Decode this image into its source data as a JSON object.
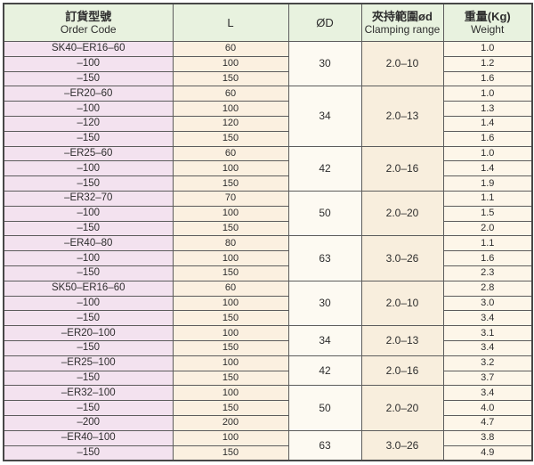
{
  "table": {
    "headers": {
      "order_code_zh": "訂貨型號",
      "order_code_en": "Order Code",
      "length": "L",
      "od": "ØD",
      "clamping_zh": "夾持範圍ød",
      "clamping_en": "Clamping range",
      "weight_zh": "重量(Kg)",
      "weight_en": "Weight"
    },
    "groups": [
      {
        "od": "30",
        "clamping": "2.0–10",
        "rows": [
          {
            "code": "SK40–ER16–60",
            "l": "60",
            "weight": "1.0"
          },
          {
            "code": "–100",
            "l": "100",
            "weight": "1.2"
          },
          {
            "code": "–150",
            "l": "150",
            "weight": "1.6"
          }
        ]
      },
      {
        "od": "34",
        "clamping": "2.0–13",
        "rows": [
          {
            "code": "–ER20–60",
            "l": "60",
            "weight": "1.0"
          },
          {
            "code": "–100",
            "l": "100",
            "weight": "1.3"
          },
          {
            "code": "–120",
            "l": "120",
            "weight": "1.4"
          },
          {
            "code": "–150",
            "l": "150",
            "weight": "1.6"
          }
        ]
      },
      {
        "od": "42",
        "clamping": "2.0–16",
        "rows": [
          {
            "code": "–ER25–60",
            "l": "60",
            "weight": "1.0"
          },
          {
            "code": "–100",
            "l": "100",
            "weight": "1.4"
          },
          {
            "code": "–150",
            "l": "150",
            "weight": "1.9"
          }
        ]
      },
      {
        "od": "50",
        "clamping": "2.0–20",
        "rows": [
          {
            "code": "–ER32–70",
            "l": "70",
            "weight": "1.1"
          },
          {
            "code": "–100",
            "l": "100",
            "weight": "1.5"
          },
          {
            "code": "–150",
            "l": "150",
            "weight": "2.0"
          }
        ]
      },
      {
        "od": "63",
        "clamping": "3.0–26",
        "rows": [
          {
            "code": "–ER40–80",
            "l": "80",
            "weight": "1.1"
          },
          {
            "code": "–100",
            "l": "100",
            "weight": "1.6"
          },
          {
            "code": "–150",
            "l": "150",
            "weight": "2.3"
          }
        ]
      },
      {
        "od": "30",
        "clamping": "2.0–10",
        "rows": [
          {
            "code": "SK50–ER16–60",
            "l": "60",
            "weight": "2.8"
          },
          {
            "code": "–100",
            "l": "100",
            "weight": "3.0"
          },
          {
            "code": "–150",
            "l": "150",
            "weight": "3.4"
          }
        ]
      },
      {
        "od": "34",
        "clamping": "2.0–13",
        "rows": [
          {
            "code": "–ER20–100",
            "l": "100",
            "weight": "3.1"
          },
          {
            "code": "–150",
            "l": "150",
            "weight": "3.4"
          }
        ]
      },
      {
        "od": "42",
        "clamping": "2.0–16",
        "rows": [
          {
            "code": "–ER25–100",
            "l": "100",
            "weight": "3.2"
          },
          {
            "code": "–150",
            "l": "150",
            "weight": "3.7"
          }
        ]
      },
      {
        "od": "50",
        "clamping": "2.0–20",
        "rows": [
          {
            "code": "–ER32–100",
            "l": "100",
            "weight": "3.4"
          },
          {
            "code": "–150",
            "l": "150",
            "weight": "4.0"
          },
          {
            "code": "–200",
            "l": "200",
            "weight": "4.7"
          }
        ]
      },
      {
        "od": "63",
        "clamping": "3.0–26",
        "rows": [
          {
            "code": "–ER40–100",
            "l": "100",
            "weight": "3.8"
          },
          {
            "code": "–150",
            "l": "150",
            "weight": "4.9"
          }
        ]
      }
    ],
    "colors": {
      "header_bg": "#e8f2df",
      "order_code_col_bg": "#f3e2ef",
      "l_col_bg": "#fbf0e0",
      "od_col_bg": "#fdfaf2",
      "clamping_col_bg": "#f8eedd",
      "weight_col_bg": "#fdf6e9",
      "border": "#5c5c5c"
    }
  }
}
